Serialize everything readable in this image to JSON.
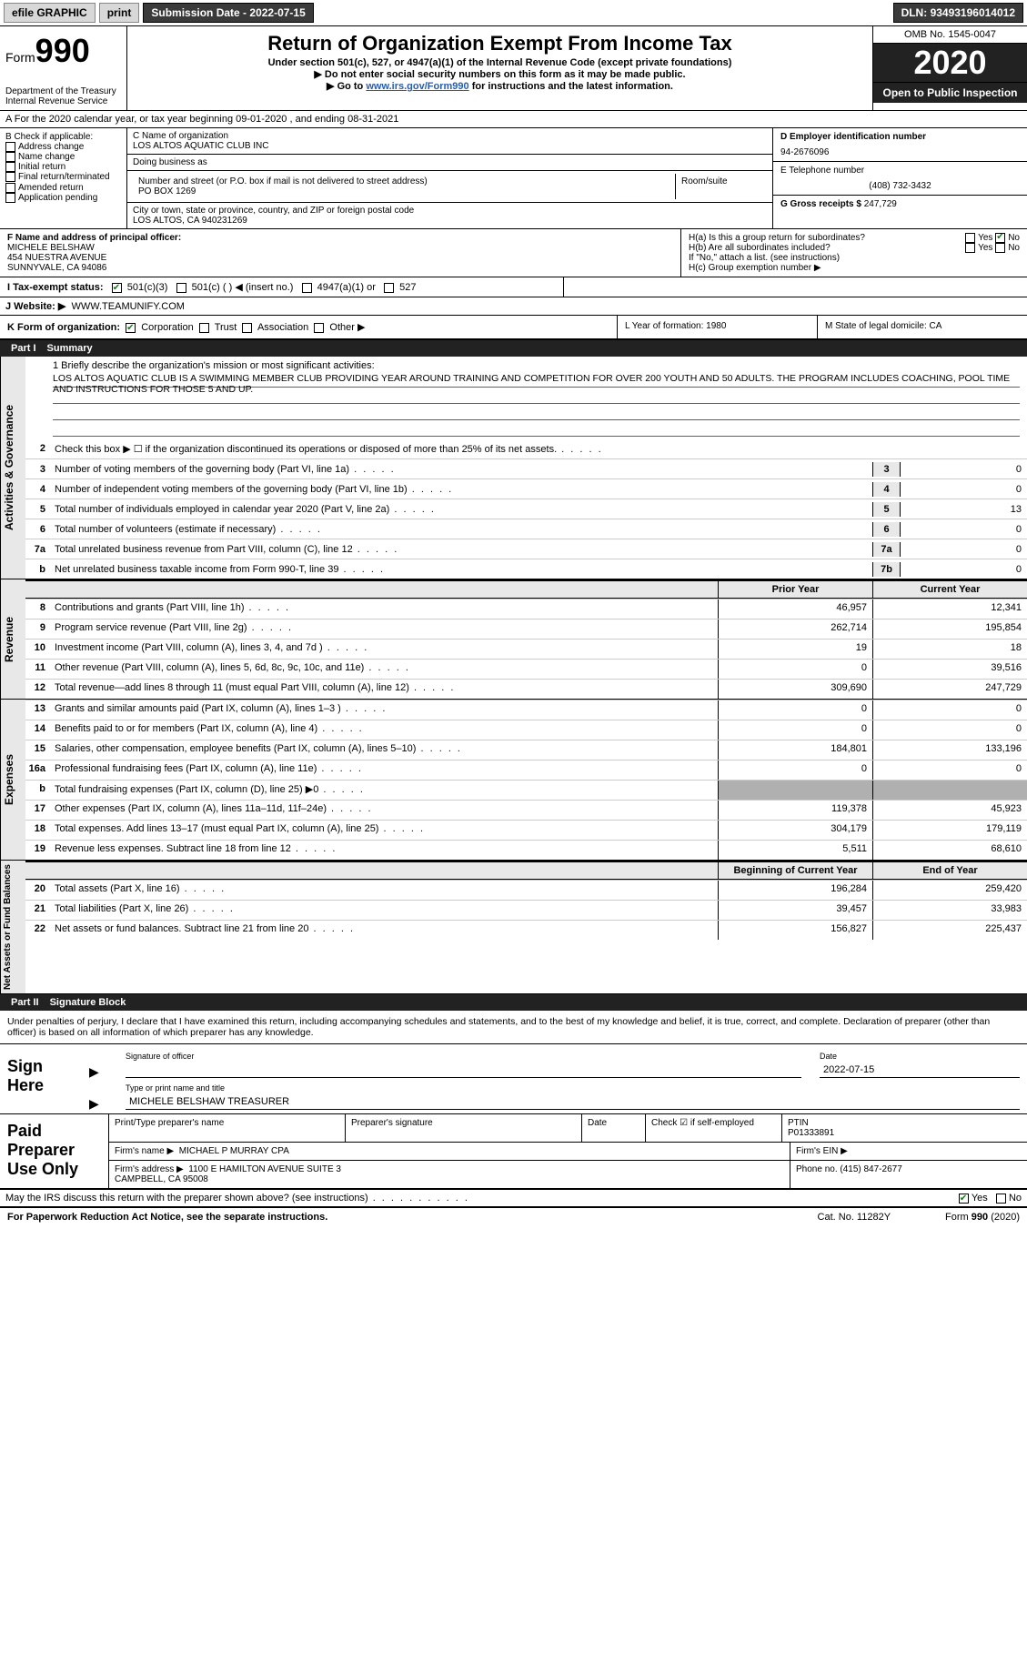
{
  "topbar": {
    "efile": "efile GRAPHIC",
    "print": "print",
    "submission_label": "Submission Date - ",
    "submission_date": "2022-07-15",
    "dln_label": "DLN: ",
    "dln": "93493196014012"
  },
  "header": {
    "form_word": "Form",
    "form_num": "990",
    "dept": "Department of the Treasury\nInternal Revenue Service",
    "title": "Return of Organization Exempt From Income Tax",
    "sub1": "Under section 501(c), 527, or 4947(a)(1) of the Internal Revenue Code (except private foundations)",
    "sub2": "Do not enter social security numbers on this form as it may be made public.",
    "sub3_pre": "Go to ",
    "sub3_link": "www.irs.gov/Form990",
    "sub3_post": " for instructions and the latest information.",
    "omb": "OMB No. 1545-0047",
    "year": "2020",
    "open": "Open to Public Inspection"
  },
  "row_a": "A For the 2020 calendar year, or tax year beginning 09-01-2020    , and ending 08-31-2021",
  "col_b": {
    "header": "B Check if applicable:",
    "opts": [
      "Address change",
      "Name change",
      "Initial return",
      "Final return/terminated",
      "Amended return",
      "Application pending"
    ]
  },
  "col_c": {
    "name_label": "C Name of organization",
    "name": "LOS ALTOS AQUATIC CLUB INC",
    "dba_label": "Doing business as",
    "dba": "",
    "addr_label": "Number and street (or P.O. box if mail is not delivered to street address)",
    "room_label": "Room/suite",
    "addr": "PO BOX 1269",
    "city_label": "City or town, state or province, country, and ZIP or foreign postal code",
    "city": "LOS ALTOS, CA  940231269"
  },
  "col_d": {
    "ein_label": "D Employer identification number",
    "ein": "94-2676096",
    "tel_label": "E Telephone number",
    "tel": "(408) 732-3432",
    "gross_label": "G Gross receipts $ ",
    "gross": "247,729"
  },
  "row_fh": {
    "f_label": "F Name and address of principal officer:",
    "f_name": "MICHELE BELSHAW",
    "f_addr1": "454 NUESTRA AVENUE",
    "f_addr2": "SUNNYVALE, CA  94086",
    "h_a": "H(a)  Is this a group return for subordinates?",
    "h_b": "H(b)  Are all subordinates included?",
    "h_b_note": "If \"No,\" attach a list. (see instructions)",
    "h_c": "H(c)  Group exemption number ▶",
    "yes": "Yes",
    "no": "No"
  },
  "row_i": {
    "label": "I  Tax-exempt status:",
    "o1": "501(c)(3)",
    "o2": "501(c) (  ) ◀ (insert no.)",
    "o3": "4947(a)(1) or",
    "o4": "527"
  },
  "row_j": {
    "label": "J  Website: ▶",
    "val": "WWW.TEAMUNIFY.COM"
  },
  "row_k": {
    "label": "K Form of organization:",
    "opts": [
      "Corporation",
      "Trust",
      "Association",
      "Other ▶"
    ],
    "l": "L Year of formation: 1980",
    "m": "M State of legal domicile: CA"
  },
  "parts": {
    "p1": "Part I",
    "p1_title": "Summary",
    "p2": "Part II",
    "p2_title": "Signature Block"
  },
  "mission": {
    "label": "1   Briefly describe the organization's mission or most significant activities:",
    "text": "LOS ALTOS AQUATIC CLUB IS A SWIMMING MEMBER CLUB PROVIDING YEAR AROUND TRAINING AND COMPETITION FOR OVER 200 YOUTH AND 50 ADULTS. THE PROGRAM INCLUDES COACHING, POOL TIME AND INSTRUCTIONS FOR THOSE 5 AND UP."
  },
  "gov_lines": [
    {
      "n": "2",
      "t": "Check this box ▶ ☐ if the organization discontinued its operations or disposed of more than 25% of its net assets."
    },
    {
      "n": "3",
      "t": "Number of voting members of the governing body (Part VI, line 1a)",
      "box": "3",
      "v": "0"
    },
    {
      "n": "4",
      "t": "Number of independent voting members of the governing body (Part VI, line 1b)",
      "box": "4",
      "v": "0"
    },
    {
      "n": "5",
      "t": "Total number of individuals employed in calendar year 2020 (Part V, line 2a)",
      "box": "5",
      "v": "13"
    },
    {
      "n": "6",
      "t": "Total number of volunteers (estimate if necessary)",
      "box": "6",
      "v": "0"
    },
    {
      "n": "7a",
      "t": "Total unrelated business revenue from Part VIII, column (C), line 12",
      "box": "7a",
      "v": "0"
    },
    {
      "n": "b",
      "t": "Net unrelated business taxable income from Form 990-T, line 39",
      "box": "7b",
      "v": "0"
    }
  ],
  "hdr2": {
    "prior": "Prior Year",
    "current": "Current Year"
  },
  "revenue": [
    {
      "n": "8",
      "t": "Contributions and grants (Part VIII, line 1h)",
      "p": "46,957",
      "c": "12,341"
    },
    {
      "n": "9",
      "t": "Program service revenue (Part VIII, line 2g)",
      "p": "262,714",
      "c": "195,854"
    },
    {
      "n": "10",
      "t": "Investment income (Part VIII, column (A), lines 3, 4, and 7d )",
      "p": "19",
      "c": "18"
    },
    {
      "n": "11",
      "t": "Other revenue (Part VIII, column (A), lines 5, 6d, 8c, 9c, 10c, and 11e)",
      "p": "0",
      "c": "39,516"
    },
    {
      "n": "12",
      "t": "Total revenue—add lines 8 through 11 (must equal Part VIII, column (A), line 12)",
      "p": "309,690",
      "c": "247,729"
    }
  ],
  "expenses": [
    {
      "n": "13",
      "t": "Grants and similar amounts paid (Part IX, column (A), lines 1–3 )",
      "p": "0",
      "c": "0"
    },
    {
      "n": "14",
      "t": "Benefits paid to or for members (Part IX, column (A), line 4)",
      "p": "0",
      "c": "0"
    },
    {
      "n": "15",
      "t": "Salaries, other compensation, employee benefits (Part IX, column (A), lines 5–10)",
      "p": "184,801",
      "c": "133,196"
    },
    {
      "n": "16a",
      "t": "Professional fundraising fees (Part IX, column (A), line 11e)",
      "p": "0",
      "c": "0"
    },
    {
      "n": "b",
      "t": "Total fundraising expenses (Part IX, column (D), line 25) ▶0",
      "shade": true
    },
    {
      "n": "17",
      "t": "Other expenses (Part IX, column (A), lines 11a–11d, 11f–24e)",
      "p": "119,378",
      "c": "45,923"
    },
    {
      "n": "18",
      "t": "Total expenses. Add lines 13–17 (must equal Part IX, column (A), line 25)",
      "p": "304,179",
      "c": "179,119"
    },
    {
      "n": "19",
      "t": "Revenue less expenses. Subtract line 18 from line 12",
      "p": "5,511",
      "c": "68,610"
    }
  ],
  "hdr3": {
    "begin": "Beginning of Current Year",
    "end": "End of Year"
  },
  "netassets": [
    {
      "n": "20",
      "t": "Total assets (Part X, line 16)",
      "p": "196,284",
      "c": "259,420"
    },
    {
      "n": "21",
      "t": "Total liabilities (Part X, line 26)",
      "p": "39,457",
      "c": "33,983"
    },
    {
      "n": "22",
      "t": "Net assets or fund balances. Subtract line 21 from line 20",
      "p": "156,827",
      "c": "225,437"
    }
  ],
  "vlabels": {
    "gov": "Activities & Governance",
    "rev": "Revenue",
    "exp": "Expenses",
    "net": "Net Assets or Fund Balances"
  },
  "penalty": "Under penalties of perjury, I declare that I have examined this return, including accompanying schedules and statements, and to the best of my knowledge and belief, it is true, correct, and complete. Declaration of preparer (other than officer) is based on all information of which preparer has any knowledge.",
  "sign": {
    "label": "Sign Here",
    "sig_of_officer": "Signature of officer",
    "date": "Date",
    "date_val": "2022-07-15",
    "name_title_lbl": "Type or print name and title",
    "name_title": "MICHELE BELSHAW TREASURER"
  },
  "paid": {
    "label": "Paid Preparer Use Only",
    "print_name_lbl": "Print/Type preparer's name",
    "print_name": "",
    "prep_sig_lbl": "Preparer's signature",
    "date_lbl": "Date",
    "check_lbl": "Check ☑ if self-employed",
    "ptin_lbl": "PTIN",
    "ptin": "P01333891",
    "firm_name_lbl": "Firm's name  ▶",
    "firm_name": "MICHAEL P MURRAY CPA",
    "firm_ein_lbl": "Firm's EIN ▶",
    "firm_addr_lbl": "Firm's address ▶",
    "firm_addr": "1100 E HAMILTON AVENUE SUITE 3\nCAMPBELL, CA  95008",
    "phone_lbl": "Phone no. ",
    "phone": "(415) 847-2677"
  },
  "discuss": {
    "q": "May the IRS discuss this return with the preparer shown above? (see instructions)",
    "yes": "Yes",
    "no": "No"
  },
  "footer": {
    "left": "For Paperwork Reduction Act Notice, see the separate instructions.",
    "mid": "Cat. No. 11282Y",
    "right": "Form 990 (2020)"
  }
}
